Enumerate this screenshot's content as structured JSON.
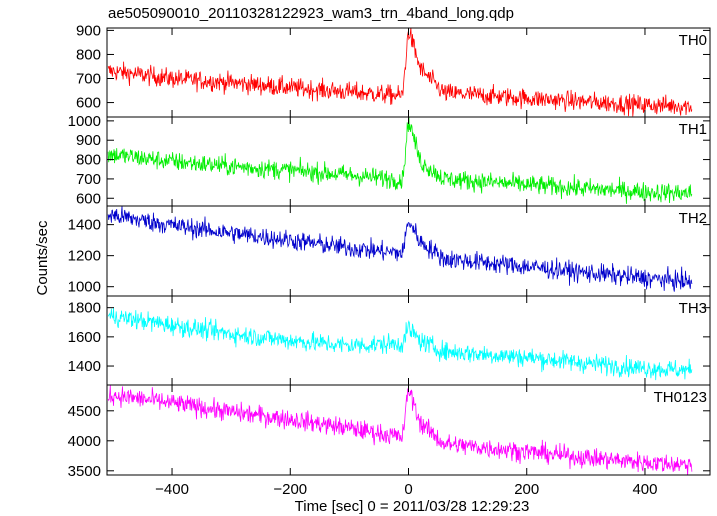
{
  "chart_data": {
    "type": "line",
    "title": "ae505090010_20110328122923_wam3_trn_4band_long.qdp",
    "xlabel": "Time [sec] 0 = 2011/03/28 12:29:23",
    "ylabel": "Counts/sec",
    "xlim": [
      -510,
      510
    ],
    "x_ticks": [
      "−400",
      "−200",
      "0",
      "200",
      "400"
    ],
    "x_tick_values": [
      -400,
      -200,
      0,
      200,
      400
    ],
    "panels": [
      {
        "name": "TH0",
        "color": "#ff0000",
        "ylim": [
          540,
          910
        ],
        "y_ticks": [
          "900",
          "800",
          "700",
          "600"
        ],
        "y_tick_values": [
          900,
          800,
          700,
          600
        ],
        "points": [
          [
            -500,
            730
          ],
          [
            -400,
            700
          ],
          [
            -300,
            683
          ],
          [
            -200,
            662
          ],
          [
            -100,
            644
          ],
          [
            -10,
            628
          ],
          [
            0,
            905
          ],
          [
            20,
            740
          ],
          [
            60,
            640
          ],
          [
            200,
            618
          ],
          [
            300,
            603
          ],
          [
            400,
            590
          ],
          [
            480,
            585
          ]
        ]
      },
      {
        "name": "TH1",
        "color": "#00ee00",
        "ylim": [
          560,
          1020
        ],
        "y_ticks": [
          "1000",
          "900",
          "800",
          "700",
          "600"
        ],
        "y_tick_values": [
          1000,
          900,
          800,
          700,
          600
        ],
        "points": [
          [
            -500,
            825
          ],
          [
            -400,
            790
          ],
          [
            -300,
            765
          ],
          [
            -200,
            745
          ],
          [
            -100,
            720
          ],
          [
            -10,
            695
          ],
          [
            0,
            1010
          ],
          [
            20,
            790
          ],
          [
            60,
            700
          ],
          [
            200,
            670
          ],
          [
            300,
            650
          ],
          [
            400,
            633
          ],
          [
            480,
            625
          ]
        ]
      },
      {
        "name": "TH2",
        "color": "#0000cc",
        "ylim": [
          940,
          1520
        ],
        "y_ticks": [
          "1400",
          "1200",
          "1000"
        ],
        "y_tick_values": [
          1400,
          1200,
          1000
        ],
        "points": [
          [
            -500,
            1460
          ],
          [
            -400,
            1395
          ],
          [
            -300,
            1345
          ],
          [
            -200,
            1300
          ],
          [
            -100,
            1250
          ],
          [
            -10,
            1215
          ],
          [
            0,
            1430
          ],
          [
            20,
            1290
          ],
          [
            60,
            1180
          ],
          [
            200,
            1130
          ],
          [
            300,
            1090
          ],
          [
            400,
            1055
          ],
          [
            480,
            1030
          ]
        ]
      },
      {
        "name": "TH3",
        "color": "#00ffff",
        "ylim": [
          1270,
          1880
        ],
        "y_ticks": [
          "1800",
          "1600",
          "1400"
        ],
        "y_tick_values": [
          1800,
          1600,
          1400
        ],
        "points": [
          [
            -500,
            1740
          ],
          [
            -400,
            1680
          ],
          [
            -300,
            1620
          ],
          [
            -200,
            1575
          ],
          [
            -100,
            1540
          ],
          [
            -10,
            1555
          ],
          [
            0,
            1660
          ],
          [
            20,
            1570
          ],
          [
            60,
            1500
          ],
          [
            200,
            1460
          ],
          [
            300,
            1420
          ],
          [
            400,
            1385
          ],
          [
            480,
            1370
          ]
        ]
      },
      {
        "name": "TH0123",
        "color": "#ff00ff",
        "ylim": [
          3430,
          4930
        ],
        "y_ticks": [
          "4500",
          "4000",
          "3500"
        ],
        "y_tick_values": [
          4500,
          4000,
          3500
        ],
        "points": [
          [
            -500,
            4760
          ],
          [
            -400,
            4630
          ],
          [
            -300,
            4480
          ],
          [
            -200,
            4360
          ],
          [
            -100,
            4210
          ],
          [
            -10,
            4060
          ],
          [
            0,
            4880
          ],
          [
            20,
            4300
          ],
          [
            60,
            3950
          ],
          [
            200,
            3820
          ],
          [
            300,
            3720
          ],
          [
            400,
            3640
          ],
          [
            480,
            3600
          ]
        ]
      }
    ]
  }
}
